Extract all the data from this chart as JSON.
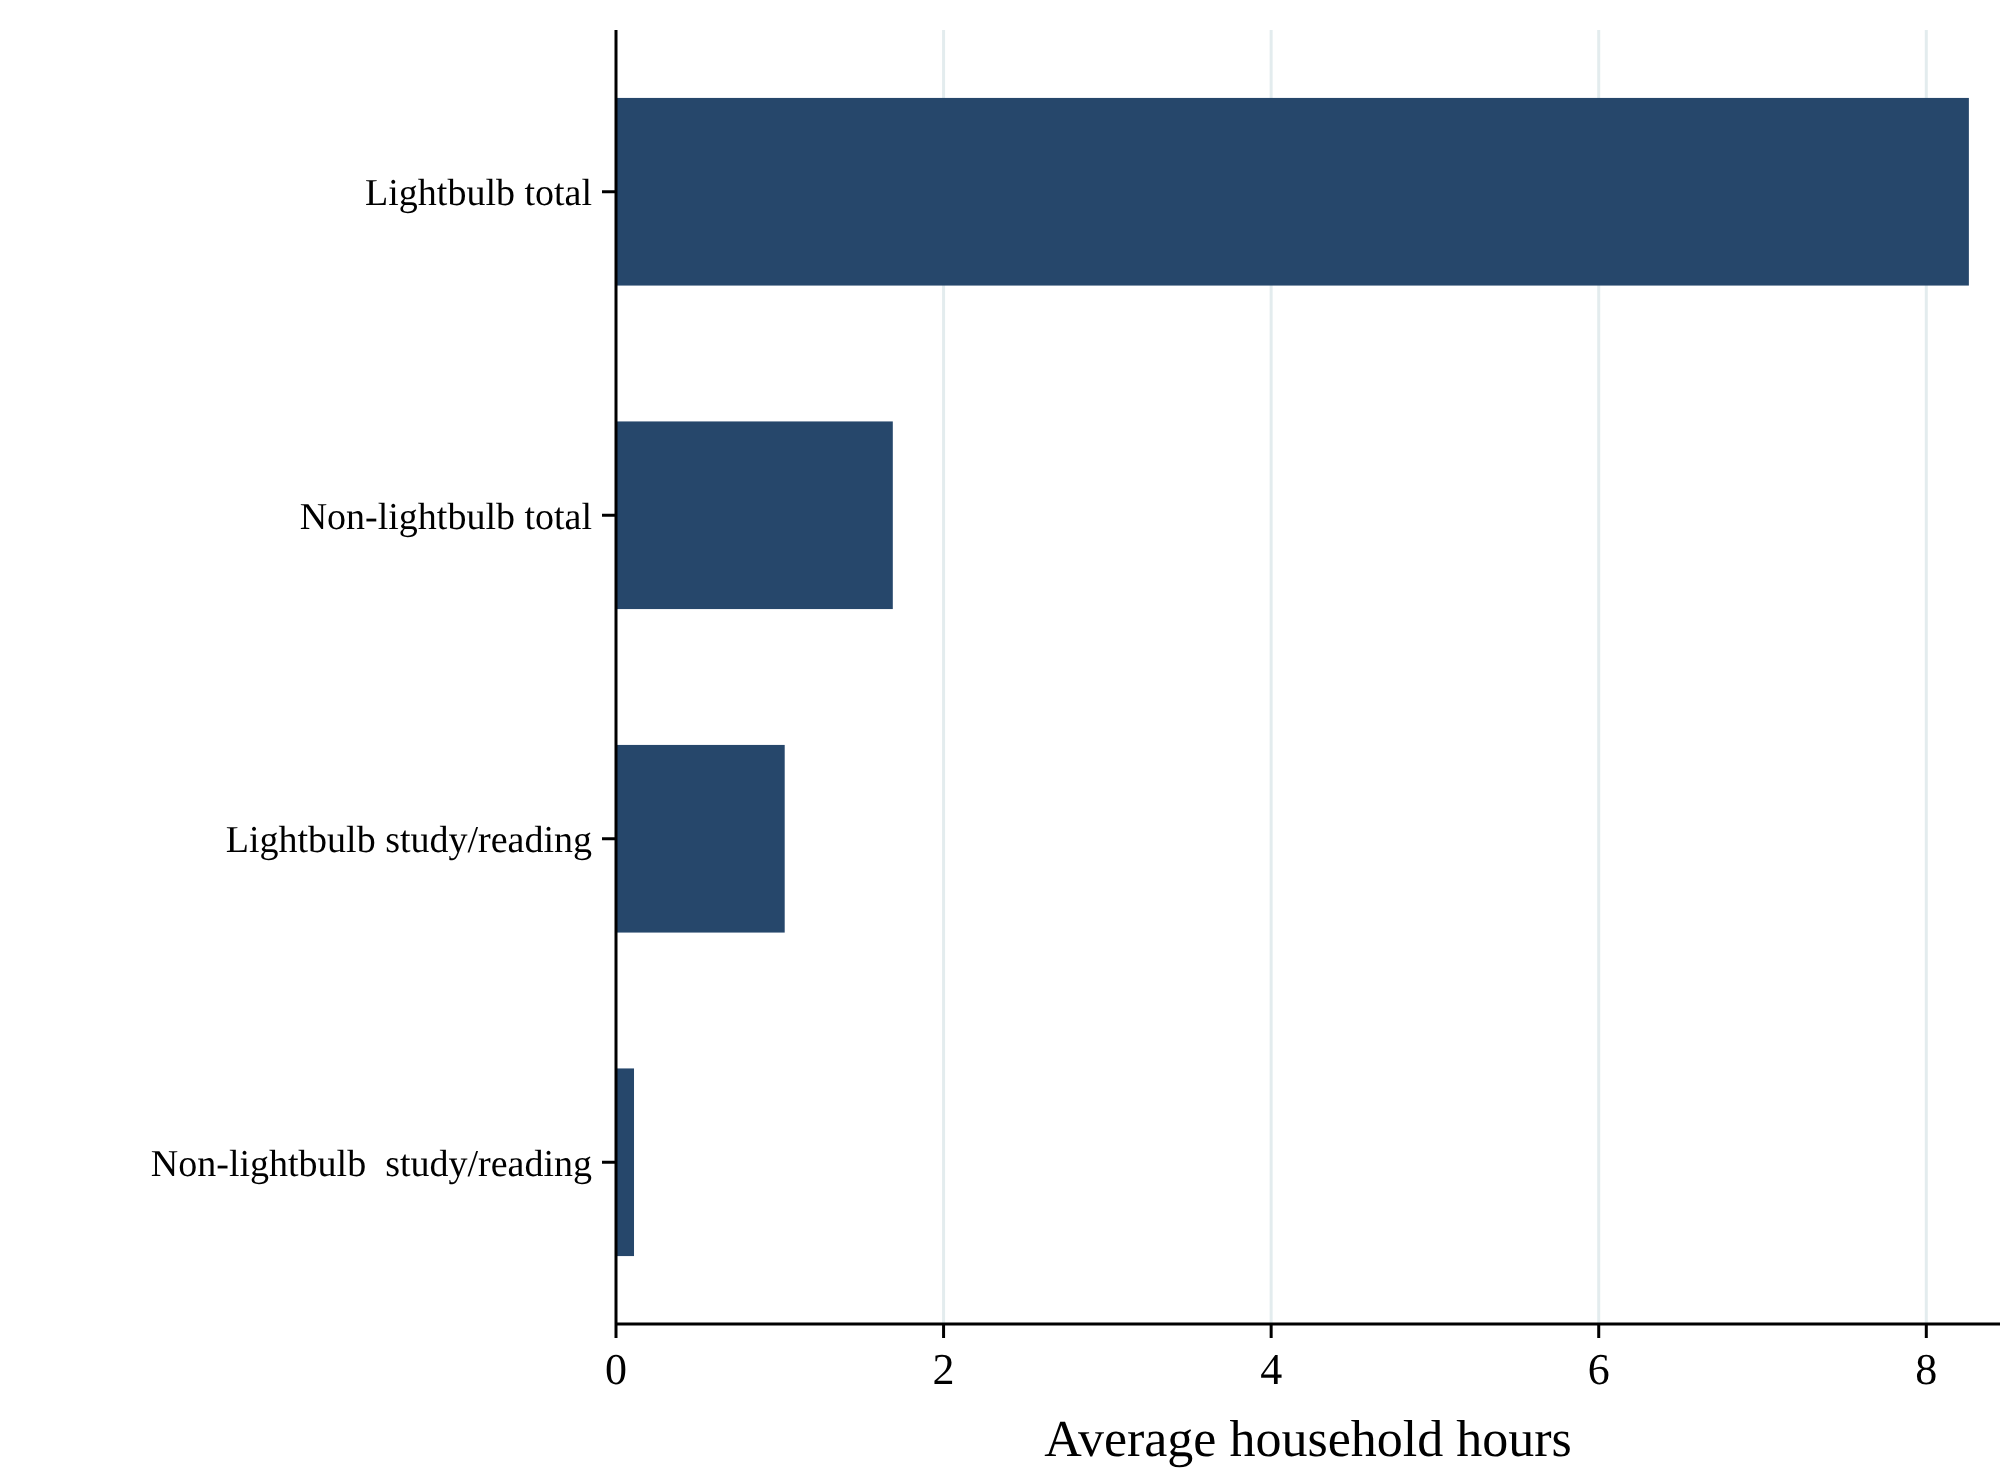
{
  "chart_data": {
    "type": "bar",
    "orientation": "horizontal",
    "xlabel": "Average household hours",
    "categories": [
      "Lightbulb total",
      "Non-lightbulb total",
      "Lightbulb study/reading",
      "Non-lightbulb  study/reading"
    ],
    "values": [
      8.26,
      1.69,
      1.03,
      0.11
    ],
    "color": "#26476b",
    "xlim": [
      0,
      8.45
    ],
    "xticks": [
      0,
      2,
      4,
      6,
      8
    ],
    "grid": "x"
  }
}
